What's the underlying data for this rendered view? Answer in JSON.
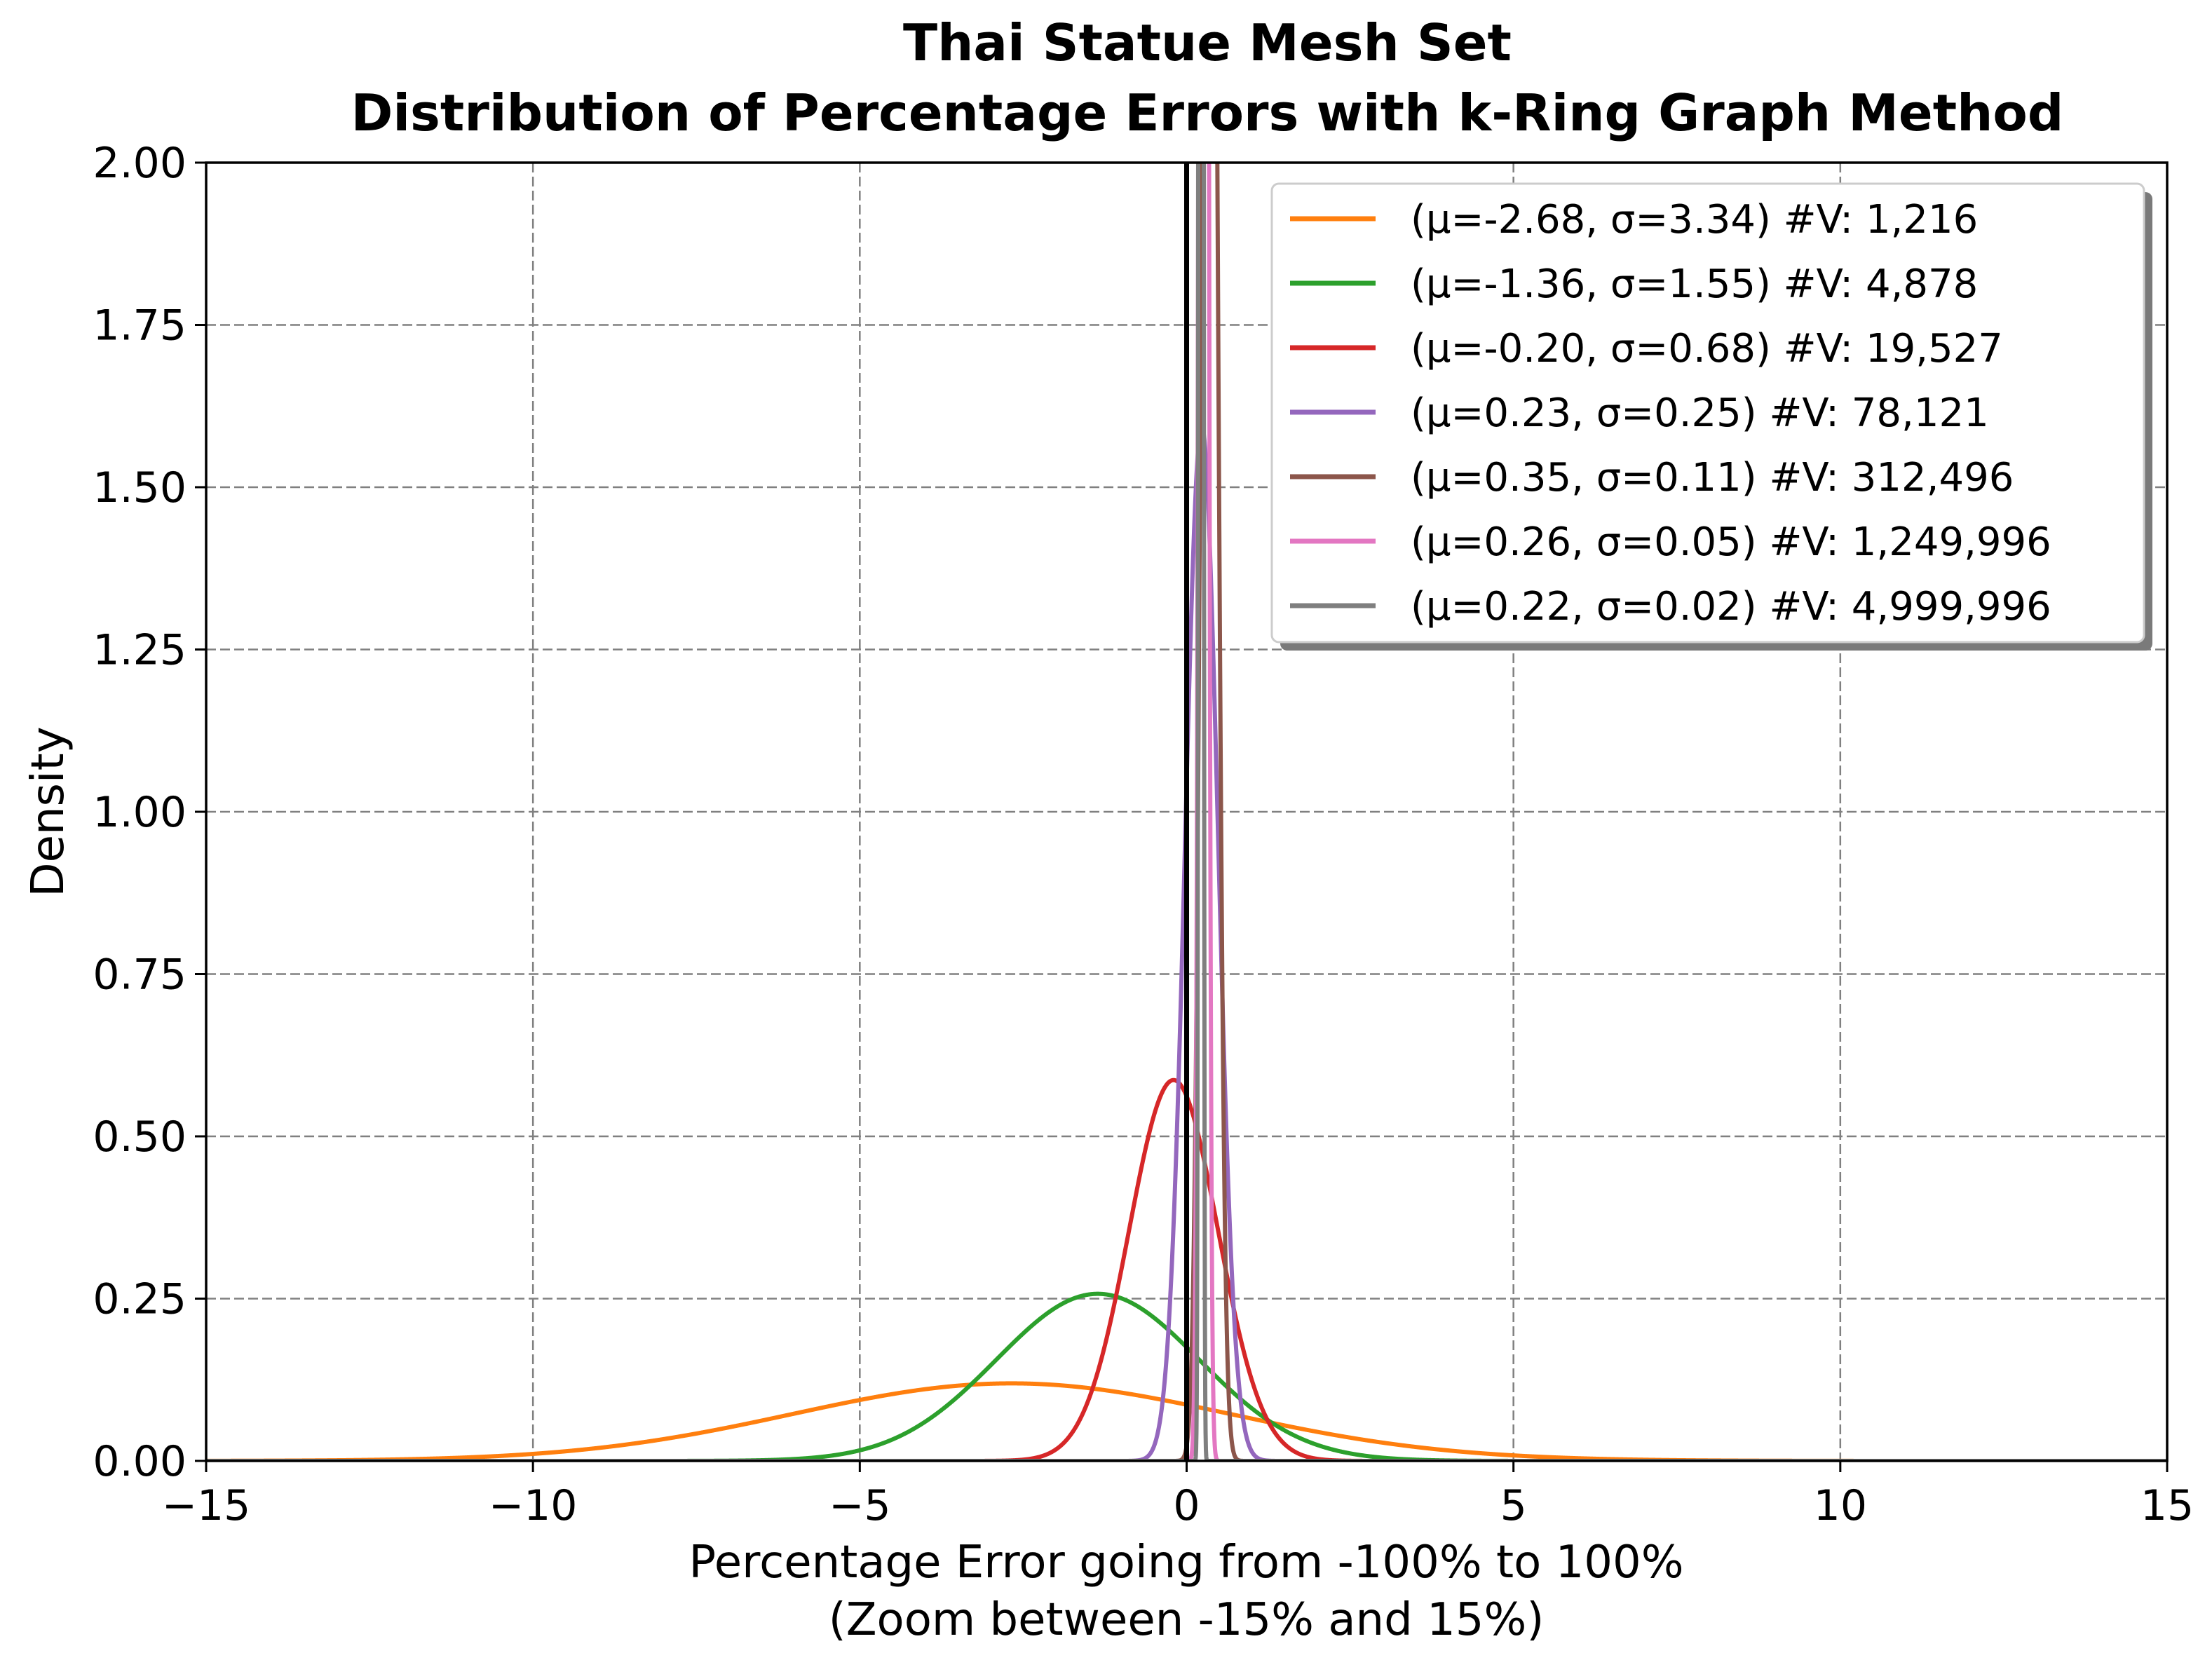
{
  "chart_data": {
    "type": "line",
    "title_line1": "Thai Statue Mesh Set",
    "title_line2": "Distribution of Percentage Errors with k-Ring Graph Method",
    "xlabel_line1": "Percentage Error going from -100% to 100%",
    "xlabel_line2": "(Zoom between -15% and 15%)",
    "ylabel": "Density",
    "xlim": [
      -15,
      15
    ],
    "ylim": [
      0,
      2
    ],
    "grid": true,
    "legend_position": "upper right",
    "xticks": [
      -15,
      -10,
      -5,
      0,
      5,
      10,
      15
    ],
    "xtick_labels": [
      "−15",
      "−10",
      "−5",
      "0",
      "5",
      "10",
      "15"
    ],
    "yticks": [
      0,
      0.25,
      0.5,
      0.75,
      1.0,
      1.25,
      1.5,
      1.75,
      2.0
    ],
    "ytick_labels": [
      "0.00",
      "0.25",
      "0.50",
      "0.75",
      "1.00",
      "1.25",
      "1.50",
      "1.75",
      "2.00"
    ],
    "vertical_line_x": 0,
    "series": [
      {
        "name": "(μ=-2.68, σ=3.34) #V: 1,216",
        "mu": -2.68,
        "sigma": 3.34,
        "color": "#ff7f0e"
      },
      {
        "name": "(μ=-1.36, σ=1.55) #V: 4,878",
        "mu": -1.36,
        "sigma": 1.55,
        "color": "#2ca02c"
      },
      {
        "name": "(μ=-0.20, σ=0.68) #V: 19,527",
        "mu": -0.2,
        "sigma": 0.68,
        "color": "#d62728"
      },
      {
        "name": "(μ=0.23, σ=0.25) #V: 78,121",
        "mu": 0.23,
        "sigma": 0.25,
        "color": "#9467bd"
      },
      {
        "name": "(μ=0.35, σ=0.11) #V: 312,496",
        "mu": 0.35,
        "sigma": 0.11,
        "color": "#8c564b"
      },
      {
        "name": "(μ=0.26, σ=0.05) #V: 1,249,996",
        "mu": 0.26,
        "sigma": 0.05,
        "color": "#e377c2"
      },
      {
        "name": "(μ=0.22, σ=0.02) #V: 4,999,996",
        "mu": 0.22,
        "sigma": 0.02,
        "color": "#7f7f7f"
      }
    ]
  }
}
